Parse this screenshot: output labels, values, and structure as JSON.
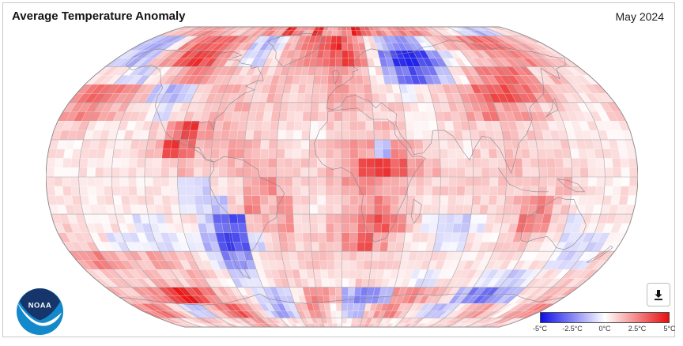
{
  "header": {
    "title": "Average Temperature Anomaly",
    "date_label": "May 2024"
  },
  "logo": {
    "text": "NOAA",
    "navy": "#15356b",
    "cyan": "#1389cb"
  },
  "download": {
    "tooltip": "Download"
  },
  "legend": {
    "ticks": [
      "-5°C",
      "-2.5°C",
      "0°C",
      "2.5°C",
      "5°C"
    ],
    "neg_color": "#0f0fe8",
    "zero_color": "#ffffff",
    "pos_color": "#e80f0f"
  },
  "chart_data": {
    "type": "heatmap",
    "title": "Average Temperature Anomaly",
    "period": "May 2024",
    "units": "°C anomaly",
    "projection": "robinson",
    "legend_position": "bottom-right",
    "colorbar": {
      "min": -5,
      "max": 5,
      "ticks": [
        -5,
        -2.5,
        0,
        2.5,
        5
      ]
    },
    "grid": {
      "lon_start": -180,
      "lat_start": 90,
      "cell_deg": 10,
      "cols": 36,
      "rows": 18
    },
    "values": [
      [
        1.5,
        1.5,
        2,
        2,
        2.5,
        2,
        1.5,
        1,
        1.5,
        2,
        2.5,
        2,
        4.5,
        2.5,
        2,
        4.5,
        2,
        2,
        2.5,
        4.5,
        3,
        2.5,
        2,
        2,
        2.5,
        2.5,
        2,
        1.5,
        1,
        0.5,
        -0.5,
        -1,
        -1.5,
        -1,
        0.5,
        1
      ],
      [
        -1.5,
        -2,
        -1.5,
        0.5,
        2.5,
        3,
        3.5,
        3,
        2.5,
        1.5,
        -1,
        -1.5,
        -0.5,
        1.5,
        2.5,
        3,
        3.5,
        4.5,
        3,
        2,
        0.5,
        -1,
        -2,
        -2.5,
        -2,
        -0.5,
        1,
        1.5,
        2,
        2.5,
        3,
        3,
        2.5,
        2,
        1.5,
        1
      ],
      [
        -1,
        -1.5,
        -1,
        1,
        2,
        3.5,
        4,
        3.5,
        2.5,
        1,
        -0.5,
        -1,
        0.5,
        1.5,
        2,
        2.5,
        3,
        3.5,
        4,
        2.5,
        0.5,
        -2.5,
        -4,
        -4.5,
        -4,
        -2.5,
        -0.5,
        0.5,
        1,
        1.5,
        2,
        2.5,
        2.5,
        2,
        1.5,
        1
      ],
      [
        0.5,
        0.5,
        -0.5,
        -1,
        0.5,
        1.5,
        2,
        2.5,
        2,
        1.5,
        1,
        1,
        1,
        1.5,
        1.5,
        1.5,
        2,
        2.5,
        2,
        1.5,
        0.5,
        -1.5,
        -3,
        -3.5,
        -2.5,
        -1,
        0.5,
        1.5,
        2.5,
        3,
        3,
        2.5,
        1,
        1.5,
        1,
        0.5
      ],
      [
        2.5,
        3,
        2.5,
        2,
        1.5,
        -1,
        -1.5,
        -1,
        1,
        1.5,
        1.5,
        1,
        1,
        1.5,
        1,
        1,
        1.5,
        2,
        2,
        1.5,
        1,
        0.5,
        -0.5,
        0.5,
        1,
        1.5,
        2,
        3,
        3.5,
        3.5,
        3,
        2,
        1.5,
        1,
        0.5,
        1
      ],
      [
        2,
        2.5,
        2,
        1.5,
        1,
        0.5,
        -0.5,
        0.5,
        1,
        1.5,
        1.5,
        1.5,
        1,
        1,
        1,
        1,
        1,
        1.5,
        1.5,
        1,
        1,
        1,
        0.5,
        0.5,
        1,
        1.5,
        2,
        2.5,
        2,
        2,
        1.5,
        1,
        1,
        0.5,
        0.5,
        1
      ],
      [
        1,
        1,
        0.5,
        0.5,
        0.5,
        0.5,
        1,
        2.5,
        4,
        2,
        1.5,
        1.5,
        1,
        1,
        0.5,
        0.5,
        0.5,
        1,
        1,
        1,
        1.5,
        1,
        0.5,
        0.5,
        0.5,
        1,
        1,
        1,
        1.5,
        1,
        1,
        0.5,
        0.5,
        0.5,
        0.5,
        0.5
      ],
      [
        0.5,
        0.5,
        0.5,
        0.5,
        0.5,
        1,
        1.5,
        4,
        3,
        1.5,
        1.5,
        2,
        1.5,
        1,
        1,
        0.5,
        1,
        1.5,
        2,
        2,
        -1.5,
        2.5,
        1.5,
        1,
        0.5,
        0.5,
        1,
        1,
        1.5,
        1,
        1,
        1,
        0.5,
        0.5,
        0.5,
        0.5
      ],
      [
        0.5,
        0.5,
        0.5,
        0.5,
        0.5,
        0.5,
        0.5,
        1,
        1.5,
        1,
        1,
        1.5,
        2,
        1.5,
        1.5,
        1,
        1,
        1.5,
        2,
        3.5,
        4,
        3.5,
        2,
        1.5,
        1,
        1,
        1,
        1,
        1.5,
        1,
        1,
        1,
        1,
        0.5,
        0.5,
        0.5
      ],
      [
        0.5,
        0.5,
        0.5,
        0.5,
        0.5,
        0.5,
        0.5,
        0.5,
        -0.5,
        -1,
        0.5,
        1,
        2,
        2.5,
        1.5,
        1,
        1,
        1.5,
        2,
        2.5,
        2,
        1.5,
        1,
        1,
        1,
        1,
        1,
        1,
        1,
        1,
        1,
        1.5,
        1,
        0.5,
        0.5,
        0.5
      ],
      [
        0.5,
        0.5,
        0.5,
        0.5,
        0.5,
        0.5,
        0.5,
        0.5,
        -0.5,
        -1,
        -1.5,
        1,
        2.5,
        1.5,
        2.5,
        1,
        0.5,
        1,
        1.5,
        2,
        2.5,
        1.5,
        1,
        0.5,
        0.5,
        0.5,
        1,
        1,
        1.5,
        2,
        2.5,
        1,
        0.5,
        0.5,
        0.5,
        0.5
      ],
      [
        1,
        0.5,
        0.5,
        0.5,
        0.5,
        -0.5,
        -0.5,
        0.5,
        0.5,
        -1,
        -3,
        -3.5,
        1,
        1.5,
        2,
        1,
        1,
        1.5,
        2,
        3,
        3.5,
        2.5,
        1,
        -0.5,
        -0.5,
        -1,
        -0.5,
        0.5,
        1,
        3,
        2.5,
        1,
        -0.5,
        0.5,
        0.5,
        0.5
      ],
      [
        1,
        1,
        0.5,
        -0.5,
        -0.5,
        -0.5,
        -0.5,
        -0.5,
        -0.5,
        -1.5,
        -4,
        -3.5,
        -1,
        1,
        1.5,
        1,
        1,
        1.5,
        2.5,
        3.5,
        2,
        1,
        0.5,
        0.5,
        -0.5,
        -0.5,
        0.5,
        0.5,
        1,
        1.5,
        1,
        0.5,
        -0.5,
        -0.5,
        -1,
        0.5
      ],
      [
        2,
        2.5,
        2,
        1.5,
        1.5,
        2,
        1.5,
        1,
        0.5,
        -0.5,
        -2.5,
        -2,
        0.5,
        1,
        1,
        1,
        1,
        1,
        1,
        1,
        1,
        1,
        0.5,
        0.5,
        0.5,
        0.5,
        0.5,
        0.5,
        0.5,
        0.5,
        0.5,
        0.5,
        -0.5,
        -1,
        -0.5,
        1
      ],
      [
        1,
        1.5,
        1,
        1,
        1.5,
        1,
        1,
        1.5,
        1,
        0.5,
        -1,
        -0.5,
        0.5,
        1,
        1,
        0.5,
        0.5,
        0.5,
        0.5,
        1,
        1,
        0.5,
        0.5,
        -0.5,
        -0.5,
        0.5,
        0.5,
        0.5,
        -0.5,
        -0.5,
        -1,
        -0.5,
        0.5,
        0.5,
        1,
        1
      ],
      [
        1.5,
        1,
        2,
        2.5,
        4,
        4.5,
        3.5,
        2.5,
        1.5,
        1,
        0.5,
        -0.5,
        -1.5,
        -1,
        0.5,
        2.5,
        2,
        1.5,
        -1.5,
        -2.5,
        -2,
        -1.5,
        2,
        2.5,
        2,
        1.5,
        1,
        -1.5,
        -2.5,
        -3,
        -2,
        -1.5,
        0.5,
        1,
        1.5,
        1.5
      ],
      [
        2.5,
        3,
        2,
        1,
        -1,
        -1.5,
        1.5,
        2.5,
        3.5,
        2.5,
        1,
        -1,
        -2,
        -1,
        1.5,
        2.5,
        1.5,
        0.5,
        -1,
        -1.5,
        1,
        2,
        2.5,
        1.5,
        0.5,
        -0.5,
        -1.5,
        -1,
        0.5,
        1.5,
        2,
        1,
        0.5,
        1.5,
        2,
        2.5
      ],
      [
        1.5,
        1,
        0.5,
        1,
        1.5,
        1,
        0.5,
        1,
        1.5,
        2,
        1.5,
        1,
        0.5,
        0.5,
        1,
        1.5,
        1,
        0.5,
        0.5,
        1,
        1.5,
        1,
        0.5,
        0.5,
        1,
        1,
        0.5,
        0.5,
        1,
        1,
        0.5,
        0.5,
        1,
        1,
        1.5,
        1
      ]
    ]
  }
}
